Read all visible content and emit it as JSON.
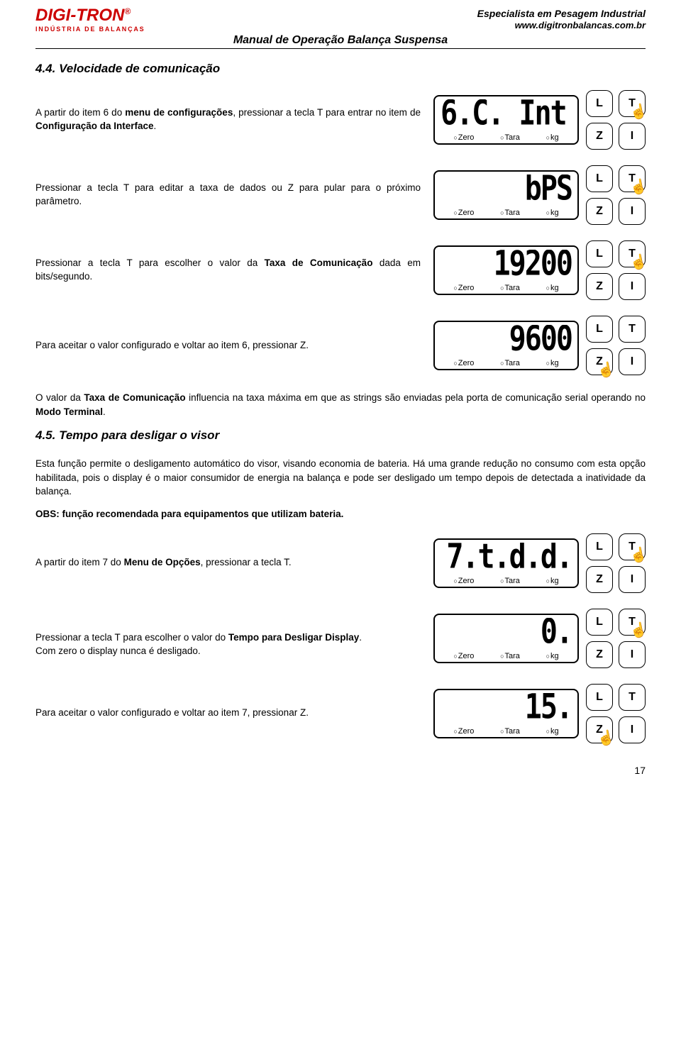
{
  "header": {
    "logo_main": "DIGI-TRON",
    "logo_reg": "®",
    "logo_sub": "INDÚSTRIA DE BALANÇAS",
    "tagline": "Especialista em Pesagem Industrial",
    "website": "www.digitronbalancas.com.br",
    "manual_title": "Manual de Operação Balança Suspensa"
  },
  "section44": {
    "title": "4.4. Velocidade de comunicação",
    "steps": [
      {
        "text_pre": "A partir do item 6 do ",
        "bold1": "menu de configurações",
        "text_mid": ", pressionar a tecla T para entrar no item de ",
        "bold2": "Configuração da Interface",
        "text_post": ".",
        "display": "6.C. Int.",
        "pressed": "T"
      },
      {
        "text_pre": "Pressionar a tecla T para editar a taxa de dados ou Z para pular para o próximo parâmetro.",
        "bold1": "",
        "text_mid": "",
        "bold2": "",
        "text_post": "",
        "display": "bPS",
        "pressed": "T"
      },
      {
        "text_pre": "Pressionar a tecla T para escolher o valor da ",
        "bold1": "Taxa de Comunicação",
        "text_mid": " dada em bits/segundo.",
        "bold2": "",
        "text_post": "",
        "display": "19200",
        "pressed": "T"
      },
      {
        "text_pre": "Para aceitar o valor configurado e voltar ao item 6, pressionar Z.",
        "bold1": "",
        "text_mid": "",
        "bold2": "",
        "text_post": "",
        "display": "9600",
        "pressed": "Z"
      }
    ],
    "footer_para_pre": "O valor da ",
    "footer_para_b1": "Taxa de Comunicação",
    "footer_para_mid": " influencia na taxa máxima em que as strings são enviadas pela porta de comunicação serial operando no ",
    "footer_para_b2": "Modo Terminal",
    "footer_para_post": "."
  },
  "section45": {
    "title": "4.5. Tempo para desligar o visor",
    "intro": "Esta função permite o desligamento automático do visor, visando economia de bateria. Há uma grande redução no consumo com esta opção habilitada, pois o display é o maior consumidor de energia na balança e pode ser desligado um tempo depois de detectada a inatividade da balança.",
    "obs": "OBS: função recomendada para equipamentos que utilizam bateria.",
    "steps": [
      {
        "text_pre": "A partir do item 7 do ",
        "bold1": "Menu de Opções",
        "text_mid": ", pressionar a tecla T.",
        "bold2": "",
        "text_post": "",
        "display": "7.t.d.d.",
        "pressed": "T"
      },
      {
        "text_pre": "Pressionar a tecla T para escolher o valor do ",
        "bold1": "Tempo para Desligar Display",
        "text_mid": ".\nCom zero o display nunca é desligado.",
        "bold2": "",
        "text_post": "",
        "display": "0.",
        "pressed": "T"
      },
      {
        "text_pre": "Para aceitar o valor configurado e voltar ao item 7, pressionar Z.",
        "bold1": "",
        "text_mid": "",
        "bold2": "",
        "text_post": "",
        "display": "15.",
        "pressed": "Z"
      }
    ]
  },
  "lcd_labels": {
    "zero": "Zero",
    "tara": "Tara",
    "kg": "kg"
  },
  "buttons": {
    "L": "L",
    "T": "T",
    "Z": "Z",
    "I": "I"
  },
  "page_number": "17",
  "colors": {
    "brand_red": "#cc0000",
    "text": "#000000",
    "background": "#ffffff",
    "border": "#000000"
  },
  "fonts": {
    "body_family": "Verdana, Arial, sans-serif",
    "body_size_pt": 10,
    "section_title_pt": 13,
    "section_title_style": "bold italic",
    "lcd_family": "monospace segmented",
    "lcd_size_pt": 30
  }
}
